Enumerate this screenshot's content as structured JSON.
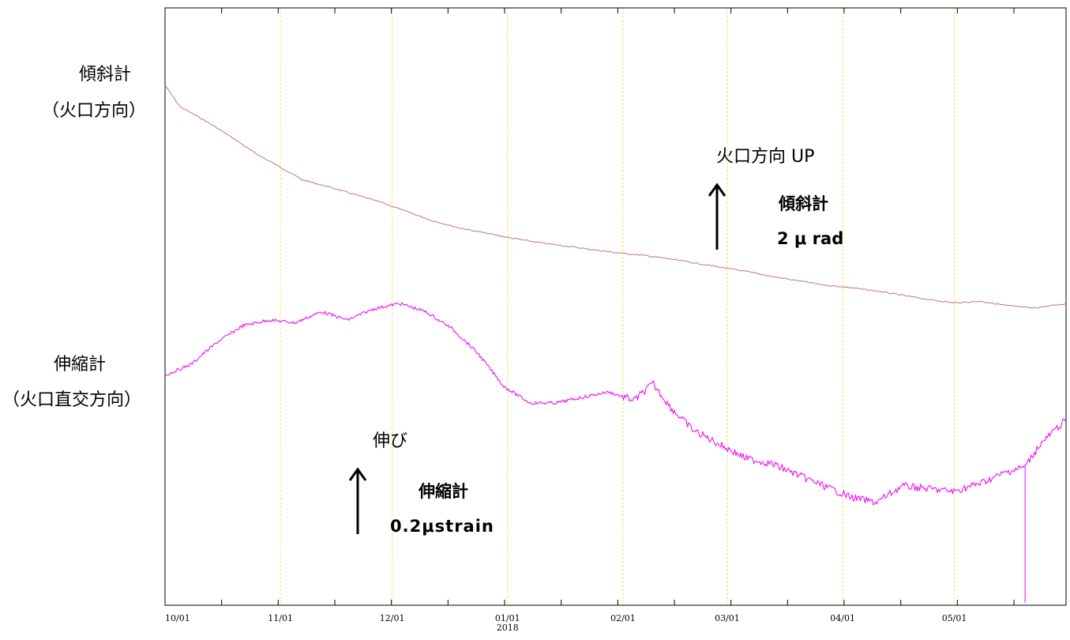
{
  "labels": {
    "tilt_name": "傾斜計",
    "tilt_direction": "（火口方向）",
    "strain_name": "伸縮計",
    "strain_direction": "（火口直交方向）"
  },
  "scales": {
    "tilt_up_label": "火口方向 UP",
    "tilt_scale_name": "傾斜計",
    "tilt_scale_value": "2 μ rad",
    "strain_up_label": "伸び",
    "strain_scale_name": "伸縮計",
    "strain_scale_value": "0.2μstrain"
  },
  "colors": {
    "tilt": "#c07878",
    "strain": "#ee00ee",
    "grid": "#e8e85a",
    "axis": "#000000"
  },
  "chart_data": {
    "type": "line",
    "x_start": "2017-10-01",
    "x_end": "2018-05-31",
    "x_tick_labels": [
      "10/01",
      "11/01",
      "12/01",
      "01/01",
      "02/01",
      "03/01",
      "04/01",
      "05/01"
    ],
    "x_year_label": "2018",
    "grid": true,
    "series": [
      {
        "name": "傾斜計",
        "unit": "μrad",
        "x": [
          "2017-10-01",
          "2017-10-05",
          "2017-10-10",
          "2017-10-15",
          "2017-10-20",
          "2017-10-25",
          "2017-11-01",
          "2017-11-07",
          "2017-11-14",
          "2017-11-21",
          "2017-11-28",
          "2017-12-05",
          "2017-12-12",
          "2017-12-19",
          "2017-12-26",
          "2018-01-02",
          "2018-01-09",
          "2018-01-16",
          "2018-01-23",
          "2018-01-30",
          "2018-02-06",
          "2018-02-13",
          "2018-02-20",
          "2018-02-27",
          "2018-03-06",
          "2018-03-13",
          "2018-03-20",
          "2018-03-27",
          "2018-04-03",
          "2018-04-10",
          "2018-04-17",
          "2018-04-24",
          "2018-05-01",
          "2018-05-08",
          "2018-05-15",
          "2018-05-22",
          "2018-05-31"
        ],
        "y": [
          0.0,
          -1.25,
          -1.85,
          -2.5,
          -3.2,
          -3.95,
          -4.8,
          -5.55,
          -5.95,
          -6.4,
          -6.85,
          -7.4,
          -7.95,
          -8.35,
          -8.65,
          -8.95,
          -9.2,
          -9.4,
          -9.6,
          -9.8,
          -9.95,
          -10.15,
          -10.4,
          -10.65,
          -10.9,
          -11.2,
          -11.45,
          -11.7,
          -11.85,
          -12.05,
          -12.3,
          -12.55,
          -12.75,
          -12.65,
          -12.9,
          -13.05,
          -12.8
        ]
      },
      {
        "name": "伸縮計",
        "unit": "μstrain",
        "x": [
          "2017-10-01",
          "2017-10-08",
          "2017-10-15",
          "2017-10-22",
          "2017-10-29",
          "2017-11-05",
          "2017-11-12",
          "2017-11-19",
          "2017-11-26",
          "2017-12-03",
          "2017-12-10",
          "2017-12-17",
          "2017-12-24",
          "2017-12-31",
          "2018-01-07",
          "2018-01-14",
          "2018-01-21",
          "2018-01-28",
          "2018-02-04",
          "2018-02-09",
          "2018-02-14",
          "2018-02-20",
          "2018-02-27",
          "2018-03-06",
          "2018-03-13",
          "2018-03-20",
          "2018-03-27",
          "2018-04-03",
          "2018-04-10",
          "2018-04-17",
          "2018-04-24",
          "2018-05-01",
          "2018-05-08",
          "2018-05-15",
          "2018-05-20",
          "2018-05-24",
          "2018-05-31"
        ],
        "y": [
          0.0,
          0.04,
          0.12,
          0.18,
          0.2,
          0.19,
          0.23,
          0.2,
          0.24,
          0.26,
          0.23,
          0.17,
          0.08,
          -0.04,
          -0.1,
          -0.1,
          -0.08,
          -0.06,
          -0.09,
          -0.03,
          -0.12,
          -0.2,
          -0.25,
          -0.3,
          -0.32,
          -0.36,
          -0.4,
          -0.44,
          -0.46,
          -0.4,
          -0.41,
          -0.42,
          -0.39,
          -0.35,
          -0.33,
          -0.25,
          -0.16
        ]
      }
    ]
  }
}
